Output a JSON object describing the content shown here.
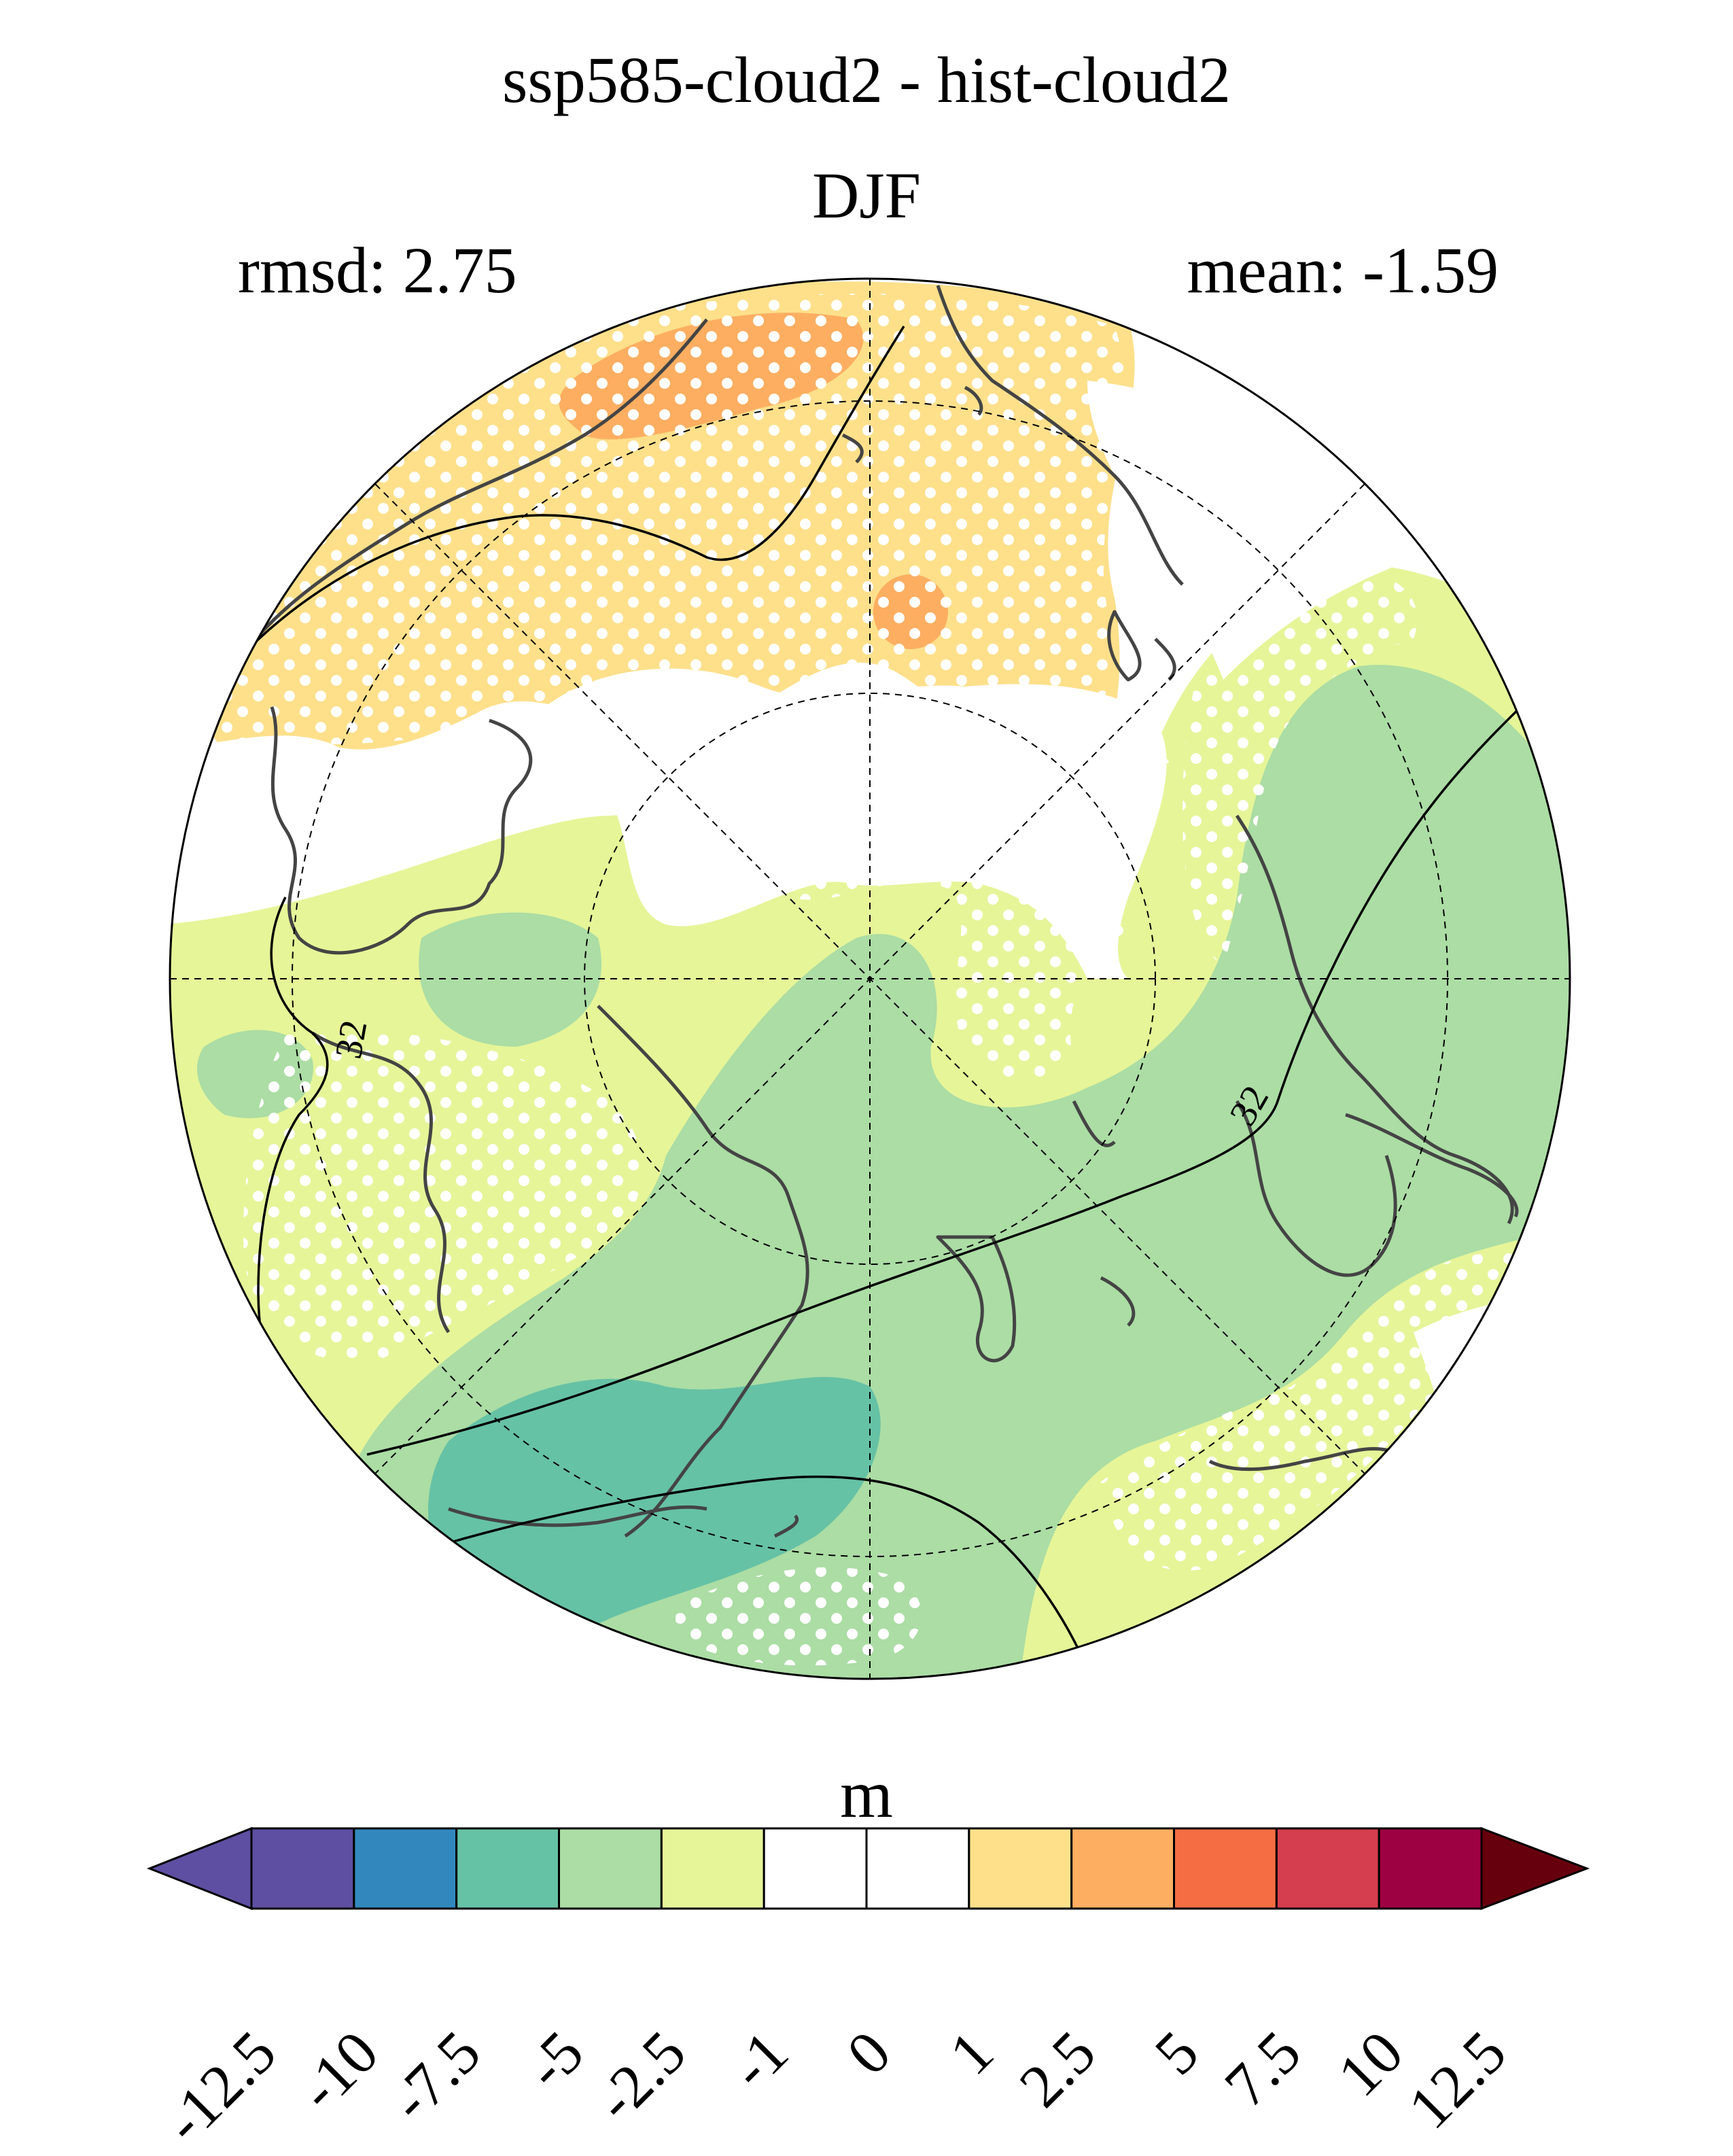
{
  "title": "ssp585-cloud2 - hist-cloud2",
  "season": "DJF",
  "stats": {
    "rmsd": "rmsd: 2.75",
    "mean": "mean: -1.59"
  },
  "map": {
    "projection": "north-polar-stereographic",
    "contour_label": "32",
    "stippling": "white dots mark significant regions"
  },
  "colorbar": {
    "unit": "m",
    "ticks": [
      "-12.5",
      "-10",
      "-7.5",
      "-5",
      "-2.5",
      "-1",
      "0",
      "1",
      "2.5",
      "5",
      "7.5",
      "10",
      "12.5"
    ],
    "colors": [
      "#5e4fa2",
      "#5e4fa2",
      "#3288bd",
      "#66c2a5",
      "#abdda4",
      "#e6f598",
      "#ffffff",
      "#ffffff",
      "#fee08b",
      "#fdae61",
      "#f46d43",
      "#d53e4f",
      "#9e0142",
      "#67000d"
    ]
  }
}
